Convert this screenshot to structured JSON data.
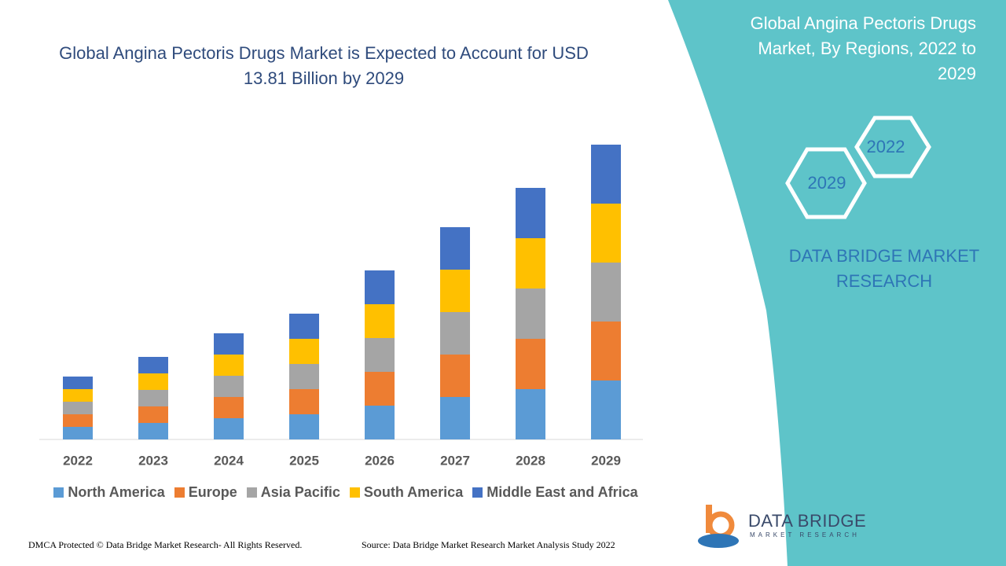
{
  "chart_data": {
    "type": "stacked-bar",
    "title": "Global Angina Pectoris Drugs Market is Expected to Account for USD 13.81 Billion by 2029",
    "categories": [
      "2022",
      "2023",
      "2024",
      "2025",
      "2026",
      "2027",
      "2028",
      "2029"
    ],
    "series": [
      {
        "name": "North America",
        "color": "#5b9bd5",
        "values": [
          16,
          21,
          27,
          32,
          43,
          54,
          64,
          75
        ]
      },
      {
        "name": "Europe",
        "color": "#ed7d31",
        "values": [
          16,
          21,
          27,
          32,
          43,
          54,
          64,
          75
        ]
      },
      {
        "name": "Asia Pacific",
        "color": "#a5a5a5",
        "values": [
          16,
          21,
          27,
          32,
          43,
          54,
          64,
          75
        ]
      },
      {
        "name": "South America",
        "color": "#ffc000",
        "values": [
          16,
          21,
          27,
          32,
          43,
          54,
          64,
          75
        ]
      },
      {
        "name": "Middle East and Africa",
        "color": "#4472c4",
        "values": [
          16,
          21,
          27,
          32,
          43,
          54,
          64,
          75
        ]
      }
    ]
  },
  "panel": {
    "title": "Global Angina Pectoris Drugs Market, By Regions, 2022 to 2029",
    "hexagons": [
      "2022",
      "2029"
    ],
    "brand": "DATA BRIDGE MARKET RESEARCH"
  },
  "logo": {
    "name": "DATA BRIDGE",
    "subtitle": "MARKET RESEARCH"
  },
  "footer": {
    "left": "DMCA Protected © Data Bridge Market Research- All Rights Reserved.",
    "right": "Source: Data Bridge Market Research Market Analysis Study 2022"
  }
}
